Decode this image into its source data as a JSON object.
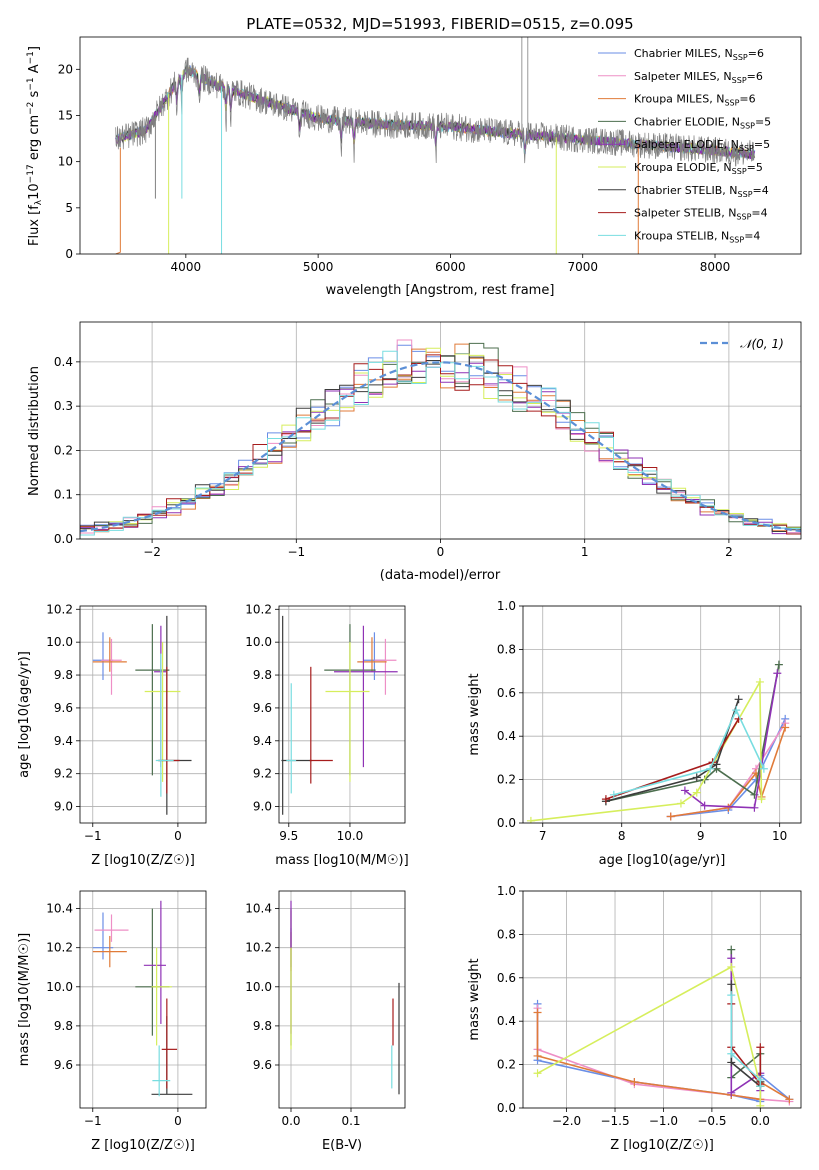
{
  "figure_title": "PLATE=0532, MJD=51993, FIBERID=0515, z=0.095",
  "colors": {
    "Chabrier MILES": "#6a8ee6",
    "Salpeter MILES": "#ee8fc6",
    "Kroupa MILES": "#e07b39",
    "Chabrier ELODIE": "#4c6e4e",
    "Salpeter ELODIE": "#8f32b5",
    "Kroupa ELODIE": "#d6ee5c",
    "Chabrier STELIB": "#3c3c3c",
    "Salpeter STELIB": "#a61c1c",
    "Kroupa STELIB": "#78dde0",
    "data": "#808080",
    "gaussian": "#5b8fd6"
  },
  "chart_data": [
    {
      "id": "spectrum",
      "type": "line",
      "title": "PLATE=0532, MJD=51993, FIBERID=0515, z=0.095",
      "xlabel": "wavelength [Angstrom, rest frame]",
      "ylabel": "Flux [f_λ 10^-17 erg cm^-2 s^-1 A^-1]",
      "xlim": [
        3200,
        8650
      ],
      "ylim": [
        0,
        23.5
      ],
      "xticks": [
        "4000",
        "5000",
        "6000",
        "7000",
        "8000"
      ],
      "yticks": [
        "0",
        "5",
        "10",
        "15",
        "20"
      ],
      "legend_position": "top-right",
      "legend": [
        "Chabrier MILES, N_SSP=6",
        "Salpeter MILES, N_SSP=6",
        "Kroupa MILES, N_SSP=6",
        "Chabrier ELODIE, N_SSP=5",
        "Salpeter ELODIE, N_SSP=5",
        "Kroupa ELODIE, N_SSP=5",
        "Chabrier STELIB, N_SSP=4",
        "Salpeter STELIB, N_SSP=4",
        "Kroupa STELIB, N_SSP=4"
      ],
      "continuum": {
        "x": [
          3470,
          3700,
          3900,
          4000,
          4200,
          4500,
          5000,
          5500,
          6000,
          6500,
          7000,
          7500,
          8000,
          8300
        ],
        "y": [
          12.4,
          13.4,
          18.0,
          20.0,
          18.5,
          17.0,
          14.7,
          14.0,
          13.8,
          13.0,
          12.4,
          11.8,
          11.2,
          10.8
        ]
      }
    },
    {
      "id": "residuals",
      "type": "bar",
      "xlabel": "(data-model)/error",
      "ylabel": "Normed distribution",
      "xlim": [
        -2.5,
        2.5
      ],
      "ylim": [
        0,
        0.49
      ],
      "xticks": [
        "−2",
        "−1",
        "0",
        "1",
        "2"
      ],
      "yticks": [
        "0.0",
        "0.1",
        "0.2",
        "0.3",
        "0.4"
      ],
      "legend": [
        "N(0,1)"
      ],
      "legend_position": "top-right",
      "bin_width": 0.1,
      "bin_start": -2.5
    },
    {
      "id": "age_vs_Z",
      "type": "scatter",
      "xlabel": "Z [log10(Z/Z☉)]",
      "ylabel": "age [log10(age/yr)]",
      "xlim": [
        -1.15,
        0.33
      ],
      "ylim": [
        8.9,
        10.22
      ],
      "xticks": [
        "−1",
        "0"
      ],
      "yticks": [
        "9.0",
        "9.2",
        "9.4",
        "9.6",
        "9.8",
        "10.0",
        "10.2"
      ],
      "points": [
        {
          "model": "Chabrier MILES",
          "x": -0.88,
          "y": 9.89,
          "xerr": [
            0.12,
            0.12
          ],
          "yerr": [
            0.12,
            0.17
          ]
        },
        {
          "model": "Salpeter MILES",
          "x": -0.78,
          "y": 9.89,
          "xerr": [
            0.12,
            0.12
          ],
          "yerr": [
            0.21,
            0.13
          ]
        },
        {
          "model": "Kroupa MILES",
          "x": -0.8,
          "y": 9.88,
          "xerr": [
            0.2,
            0.2
          ],
          "yerr": [
            0.06,
            0.15
          ]
        },
        {
          "model": "Chabrier ELODIE",
          "x": -0.3,
          "y": 9.83,
          "xerr": [
            0.2,
            0.2
          ],
          "yerr": [
            0.64,
            0.28
          ]
        },
        {
          "model": "Salpeter ELODIE",
          "x": -0.2,
          "y": 9.82,
          "xerr": [
            0.08,
            0.06
          ],
          "yerr": [
            0.58,
            0.28
          ]
        },
        {
          "model": "Kroupa ELODIE",
          "x": -0.18,
          "y": 9.7,
          "xerr": [
            0.21,
            0.21
          ],
          "yerr": [
            0.55,
            0.3
          ]
        },
        {
          "model": "Chabrier STELIB",
          "x": -0.13,
          "y": 9.28,
          "xerr": [
            0.1,
            0.29
          ],
          "yerr": [
            0.33,
            0.88
          ]
        },
        {
          "model": "Salpeter STELIB",
          "x": -0.13,
          "y": 9.28,
          "xerr": [
            0.1,
            0.15
          ],
          "yerr": [
            0.2,
            0.57
          ]
        },
        {
          "model": "Kroupa STELIB",
          "x": -0.2,
          "y": 9.28,
          "xerr": [
            0.06,
            0.15
          ],
          "yerr": [
            0.22,
            0.65
          ]
        }
      ]
    },
    {
      "id": "age_vs_mass",
      "type": "scatter",
      "xlabel": "mass [log10(M/M☉)]",
      "ylabel": "",
      "xlim": [
        9.42,
        10.45
      ],
      "ylim": [
        8.9,
        10.22
      ],
      "xticks": [
        "9.5",
        "10.0"
      ],
      "yticks": [
        "9.0",
        "9.2",
        "9.4",
        "9.6",
        "9.8",
        "10.0",
        "10.2"
      ],
      "points": [
        {
          "model": "Chabrier MILES",
          "x": 10.2,
          "y": 9.89,
          "xerr": [
            0.09,
            0.09
          ],
          "yerr": [
            0.12,
            0.17
          ]
        },
        {
          "model": "Salpeter MILES",
          "x": 10.29,
          "y": 9.89,
          "xerr": [
            0.09,
            0.09
          ],
          "yerr": [
            0.21,
            0.13
          ]
        },
        {
          "model": "Kroupa MILES",
          "x": 10.18,
          "y": 9.88,
          "xerr": [
            0.12,
            0.12
          ],
          "yerr": [
            0.06,
            0.15
          ]
        },
        {
          "model": "Chabrier ELODIE",
          "x": 10.0,
          "y": 9.83,
          "xerr": [
            0.21,
            0.21
          ],
          "yerr": [
            0.64,
            0.28
          ]
        },
        {
          "model": "Salpeter ELODIE",
          "x": 10.11,
          "y": 9.82,
          "xerr": [
            0.24,
            0.28
          ],
          "yerr": [
            0.58,
            0.28
          ]
        },
        {
          "model": "Kroupa ELODIE",
          "x": 10.0,
          "y": 9.7,
          "xerr": [
            0.2,
            0.16
          ],
          "yerr": [
            0.55,
            0.3
          ]
        },
        {
          "model": "Chabrier STELIB",
          "x": 9.45,
          "y": 9.28,
          "xerr": [
            0.01,
            0.24
          ],
          "yerr": [
            0.33,
            0.88
          ]
        },
        {
          "model": "Salpeter STELIB",
          "x": 9.68,
          "y": 9.28,
          "xerr": [
            0.01,
            0.18
          ],
          "yerr": [
            0.14,
            0.57
          ]
        },
        {
          "model": "Kroupa STELIB",
          "x": 9.52,
          "y": 9.28,
          "xerr": [
            0.04,
            0.04
          ],
          "yerr": [
            0.2,
            0.47
          ]
        }
      ]
    },
    {
      "id": "mass_weight_vs_age",
      "type": "line",
      "xlabel": "age [log10(age/yr)]",
      "ylabel": "mass weight",
      "xlim": [
        6.75,
        10.27
      ],
      "ylim": [
        0,
        1
      ],
      "xticks": [
        "7",
        "8",
        "9",
        "10"
      ],
      "yticks": [
        "0.0",
        "0.2",
        "0.4",
        "0.6",
        "0.8",
        "1.0"
      ],
      "series": [
        {
          "model": "Chabrier MILES",
          "x": [
            8.62,
            9.35,
            9.7,
            10.07
          ],
          "y": [
            0.03,
            0.06,
            0.2,
            0.48
          ]
        },
        {
          "model": "Salpeter MILES",
          "x": [
            8.62,
            9.35,
            9.7,
            10.07
          ],
          "y": [
            0.03,
            0.07,
            0.25,
            0.46
          ]
        },
        {
          "model": "Kroupa MILES",
          "x": [
            8.62,
            9.35,
            9.7,
            9.77,
            10.07
          ],
          "y": [
            0.03,
            0.07,
            0.23,
            0.12,
            0.44
          ]
        },
        {
          "model": "Chabrier ELODIE",
          "x": [
            7.8,
            9.05,
            9.2,
            9.68,
            9.99
          ],
          "y": [
            0.1,
            0.2,
            0.25,
            0.13,
            0.73
          ]
        },
        {
          "model": "Salpeter ELODIE",
          "x": [
            8.8,
            9.05,
            9.68,
            9.97
          ],
          "y": [
            0.15,
            0.08,
            0.07,
            0.69
          ]
        },
        {
          "model": "Kroupa ELODIE",
          "x": [
            6.85,
            8.75,
            8.95,
            9.75,
            9.77
          ],
          "y": [
            0.01,
            0.09,
            0.14,
            0.65,
            0.11
          ]
        },
        {
          "model": "Chabrier STELIB",
          "x": [
            7.8,
            8.95,
            9.2,
            9.48
          ],
          "y": [
            0.1,
            0.21,
            0.27,
            0.57
          ]
        },
        {
          "model": "Salpeter STELIB",
          "x": [
            7.8,
            9.15,
            9.48
          ],
          "y": [
            0.11,
            0.28,
            0.48
          ]
        },
        {
          "model": "Kroupa STELIB",
          "x": [
            7.9,
            9.12,
            9.45,
            9.8
          ],
          "y": [
            0.13,
            0.25,
            0.52,
            0.25
          ]
        }
      ]
    },
    {
      "id": "mass_vs_Z",
      "type": "scatter",
      "xlabel": "Z [log10(Z/Z☉)]",
      "ylabel": "mass [log10(M/M☉)]",
      "xlim": [
        -1.15,
        0.33
      ],
      "ylim": [
        9.38,
        10.49
      ],
      "xticks": [
        "−1",
        "0"
      ],
      "yticks": [
        "9.6",
        "9.8",
        "10.0",
        "10.2",
        "10.4"
      ],
      "points": [
        {
          "model": "Chabrier MILES",
          "x": -0.88,
          "y": 10.2,
          "xerr": [
            0.12,
            0.12
          ],
          "yerr": [
            0.06,
            0.18
          ]
        },
        {
          "model": "Salpeter MILES",
          "x": -0.78,
          "y": 10.29,
          "xerr": [
            0.2,
            0.2
          ],
          "yerr": [
            0.06,
            0.08
          ]
        },
        {
          "model": "Kroupa MILES",
          "x": -0.8,
          "y": 10.18,
          "xerr": [
            0.2,
            0.2
          ],
          "yerr": [
            0.08,
            0.08
          ]
        },
        {
          "model": "Chabrier ELODIE",
          "x": -0.3,
          "y": 10.0,
          "xerr": [
            0.2,
            0.2
          ],
          "yerr": [
            0.25,
            0.4
          ]
        },
        {
          "model": "Salpeter ELODIE",
          "x": -0.2,
          "y": 10.11,
          "xerr": [
            0.2,
            0.06
          ],
          "yerr": [
            0.3,
            0.33
          ]
        },
        {
          "model": "Kroupa ELODIE",
          "x": -0.25,
          "y": 10.0,
          "xerr": [
            0.06,
            0.18
          ],
          "yerr": [
            0.3,
            0.2
          ]
        },
        {
          "model": "Chabrier STELIB",
          "x": -0.13,
          "y": 9.45,
          "xerr": [
            0.18,
            0.3
          ],
          "yerr": [
            0.0,
            0.4
          ]
        },
        {
          "model": "Salpeter STELIB",
          "x": -0.13,
          "y": 9.68,
          "xerr": [
            0.06,
            0.12
          ],
          "yerr": [
            0.2,
            0.26
          ]
        },
        {
          "model": "Kroupa STELIB",
          "x": -0.22,
          "y": 9.52,
          "xerr": [
            0.08,
            0.13
          ],
          "yerr": [
            0.08,
            0.18
          ]
        }
      ]
    },
    {
      "id": "mass_vs_ebv",
      "type": "scatter",
      "xlabel": "E(B-V)",
      "ylabel": "",
      "xlim": [
        -0.02,
        0.19
      ],
      "ylim": [
        9.38,
        10.49
      ],
      "xticks": [
        "0.0",
        "0.1"
      ],
      "yticks": [
        "9.6",
        "9.8",
        "10.0",
        "10.2",
        "10.4"
      ],
      "points": [
        {
          "model": "Chabrier MILES",
          "x": 0.0,
          "y": 10.2,
          "yerr": [
            0.1,
            0.1
          ]
        },
        {
          "model": "Salpeter MILES",
          "x": 0.0,
          "y": 10.29,
          "yerr": [
            0.1,
            0.1
          ]
        },
        {
          "model": "Kroupa MILES",
          "x": 0.0,
          "y": 10.18,
          "yerr": [
            0.1,
            0.1
          ]
        },
        {
          "model": "Chabrier ELODIE",
          "x": 0.0,
          "y": 10.0,
          "yerr": [
            0.3,
            0.4
          ]
        },
        {
          "model": "Salpeter ELODIE",
          "x": 0.0,
          "y": 10.11,
          "yerr": [
            0.35,
            0.33
          ]
        },
        {
          "model": "Kroupa ELODIE",
          "x": 0.0,
          "y": 10.0,
          "yerr": [
            0.32,
            0.2
          ]
        },
        {
          "model": "Chabrier STELIB",
          "x": 0.18,
          "y": 9.7,
          "yerr": [
            0.25,
            0.32
          ]
        },
        {
          "model": "Salpeter STELIB",
          "x": 0.17,
          "y": 9.8,
          "yerr": [
            0.1,
            0.14
          ]
        },
        {
          "model": "Kroupa STELIB",
          "x": 0.168,
          "y": 9.65,
          "yerr": [
            0.17,
            0.05
          ]
        }
      ]
    },
    {
      "id": "mass_weight_vs_Z",
      "type": "line",
      "xlabel": "Z [log10(Z/Z☉)]",
      "ylabel": "mass weight",
      "xlim": [
        -2.45,
        0.42
      ],
      "ylim": [
        0,
        1
      ],
      "xticks": [
        "−2.0",
        "−1.5",
        "−1.0",
        "−0.5",
        "0.0"
      ],
      "yticks": [
        "0.0",
        "0.2",
        "0.4",
        "0.6",
        "0.8",
        "1.0"
      ],
      "series": [
        {
          "model": "Chabrier MILES",
          "x": [
            -2.3,
            -2.3,
            -1.3,
            -0.3,
            0.0,
            0.0,
            0.3
          ],
          "y": [
            0.48,
            0.22,
            0.12,
            0.06,
            0.03,
            0.15,
            0.04
          ]
        },
        {
          "model": "Salpeter MILES",
          "x": [
            -2.3,
            -2.3,
            -1.3,
            -0.3,
            0.0,
            0.3
          ],
          "y": [
            0.46,
            0.27,
            0.11,
            0.06,
            0.04,
            0.03
          ]
        },
        {
          "model": "Kroupa MILES",
          "x": [
            -2.3,
            -2.3,
            -1.3,
            -0.3,
            0.0,
            0.0,
            0.3
          ],
          "y": [
            0.44,
            0.24,
            0.12,
            0.06,
            0.04,
            0.12,
            0.04
          ]
        },
        {
          "model": "Chabrier ELODIE",
          "x": [
            -0.3,
            -0.3,
            0.0,
            0.0
          ],
          "y": [
            0.73,
            0.14,
            0.25,
            0.12
          ]
        },
        {
          "model": "Salpeter ELODIE",
          "x": [
            -0.3,
            -0.3,
            0.0,
            0.0
          ],
          "y": [
            0.69,
            0.07,
            0.16,
            0.08
          ]
        },
        {
          "model": "Kroupa ELODIE",
          "x": [
            -2.3,
            -0.3,
            0.0,
            0.0
          ],
          "y": [
            0.16,
            0.65,
            0.1,
            0.01
          ]
        },
        {
          "model": "Chabrier STELIB",
          "x": [
            -0.3,
            -0.3,
            0.0,
            0.0
          ],
          "y": [
            0.57,
            0.21,
            0.1,
            0.12
          ]
        },
        {
          "model": "Salpeter STELIB",
          "x": [
            -0.3,
            -0.3,
            0.0,
            0.0
          ],
          "y": [
            0.48,
            0.28,
            0.11,
            0.28
          ]
        },
        {
          "model": "Kroupa STELIB",
          "x": [
            -0.3,
            -0.3,
            0.0,
            0.0
          ],
          "y": [
            0.52,
            0.25,
            0.13,
            0.1
          ]
        }
      ]
    }
  ]
}
